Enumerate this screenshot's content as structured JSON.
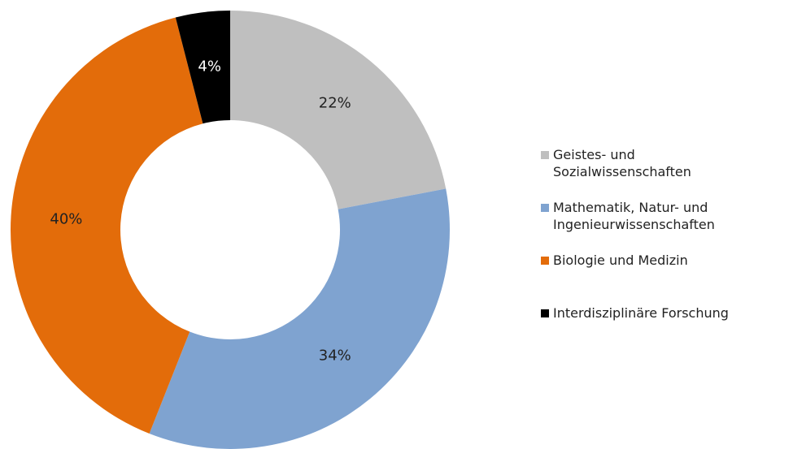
{
  "chart_data": {
    "type": "donut",
    "categories": [
      "Geistes- und Sozialwissenschaften",
      "Mathematik, Natur- und Ingenieurwissenschaften",
      "Biologie und Medizin",
      "Interdisziplinäre Forschung"
    ],
    "values": [
      22,
      34,
      40,
      4
    ],
    "value_labels": [
      "22%",
      "34%",
      "40%",
      "4%"
    ],
    "colors": [
      "#bfbfbf",
      "#7fa3d0",
      "#e36c0a",
      "#000000"
    ],
    "legend": "right"
  }
}
